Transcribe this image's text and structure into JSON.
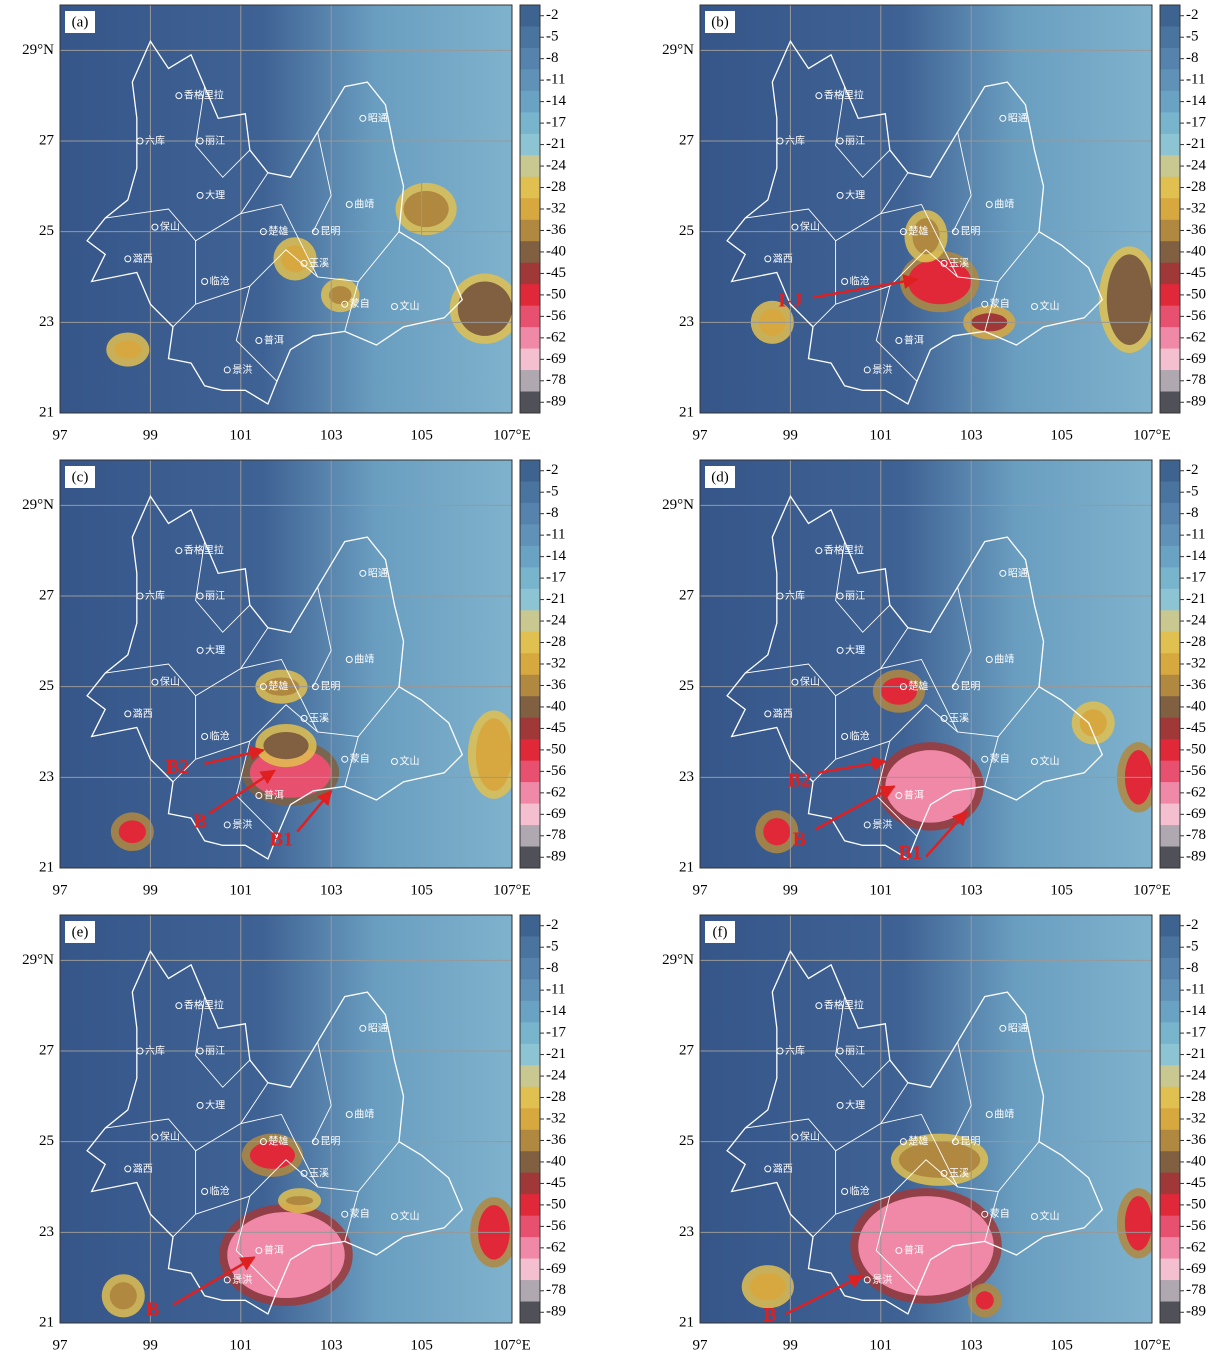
{
  "axes": {
    "xlim": [
      97,
      107
    ],
    "ylim": [
      21,
      30
    ],
    "xticks": [
      {
        "value": 97,
        "label": "97"
      },
      {
        "value": 99,
        "label": "99"
      },
      {
        "value": 101,
        "label": "101"
      },
      {
        "value": 103,
        "label": "103"
      },
      {
        "value": 105,
        "label": "105"
      },
      {
        "value": 107,
        "label": "107°E"
      }
    ],
    "yticks": [
      {
        "value": 21,
        "label": "21"
      },
      {
        "value": 23,
        "label": "23"
      },
      {
        "value": 25,
        "label": "25"
      },
      {
        "value": 27,
        "label": "27"
      },
      {
        "value": 29,
        "label": "29°N"
      }
    ]
  },
  "colorbar": {
    "levels": [
      -2,
      -5,
      -8,
      -11,
      -14,
      -17,
      -21,
      -24,
      -28,
      -32,
      -36,
      -40,
      -45,
      -50,
      -56,
      -62,
      -69,
      -78,
      -89
    ],
    "colors": [
      "#3d6490",
      "#4a74a0",
      "#5682ae",
      "#6092b8",
      "#6aa2c4",
      "#78b4cc",
      "#8cc4d4",
      "#c8c890",
      "#e0c050",
      "#d8a840",
      "#b08840",
      "#806040",
      "#a03838",
      "#e02838",
      "#e85070",
      "#f088a8",
      "#f4c0d0",
      "#b0a8b0",
      "#505058"
    ]
  },
  "cities": [
    "香格里拉",
    "昭通",
    "六库",
    "丽江",
    "大理",
    "曲靖",
    "保山",
    "楚雄",
    "昆明",
    "玉溪",
    "潞西",
    "临沧",
    "蒙自",
    "文山",
    "普洱",
    "景洪"
  ],
  "panels": [
    {
      "label": "(a)",
      "annotations": []
    },
    {
      "label": "(b)",
      "annotations": [
        "I-J"
      ]
    },
    {
      "label": "(c)",
      "annotations": [
        "B2",
        "B",
        "B1"
      ]
    },
    {
      "label": "(d)",
      "annotations": [
        "B2",
        "B",
        "B1"
      ]
    },
    {
      "label": "(e)",
      "annotations": [
        "B"
      ]
    },
    {
      "label": "(f)",
      "annotations": [
        "B"
      ]
    }
  ]
}
